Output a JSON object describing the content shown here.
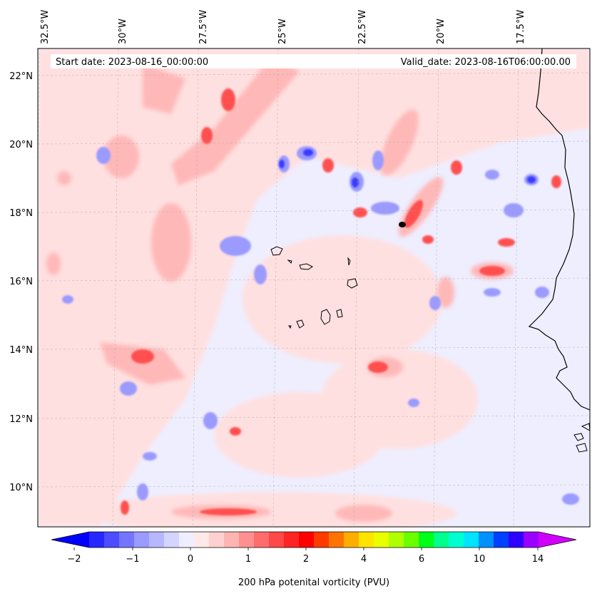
{
  "map": {
    "header": {
      "start_date": "Start date: 2023-08-16_00:00:00",
      "valid_date": "Valid_date: 2023-08-16T06:00:00.00"
    },
    "lon_labels": [
      "32.5°W",
      "30°W",
      "27.5°W",
      "25°W",
      "22.5°W",
      "20°W",
      "17.5°W"
    ],
    "lat_labels": [
      "22°N",
      "20°N",
      "18°N",
      "16°N",
      "14°N",
      "12°N",
      "10°N"
    ],
    "gridlines": true
  },
  "colorbar": {
    "label": "200 hPa potenital vorticity (PVU)",
    "tick_labels": [
      "−2",
      "−1",
      "0",
      "1",
      "2",
      "4",
      "6",
      "10",
      "14"
    ],
    "colors": [
      "#0000ff",
      "#2727ff",
      "#4d4dff",
      "#7474ff",
      "#9a9aff",
      "#b7b7ff",
      "#d4d4ff",
      "#eeeeff",
      "#ffe8e8",
      "#ffd0d0",
      "#ffb4b4",
      "#ff9090",
      "#ff6c6c",
      "#ff4848",
      "#ff2424",
      "#ff0000",
      "#ff3a00",
      "#ff7400",
      "#ffae00",
      "#ffe400",
      "#e8ff00",
      "#b0ff00",
      "#6cff00",
      "#00ff18",
      "#00ff8c",
      "#00ffd0",
      "#00e4ff",
      "#0090ff",
      "#0040ff",
      "#3000ff",
      "#9a00ff",
      "#d000ff"
    ]
  }
}
